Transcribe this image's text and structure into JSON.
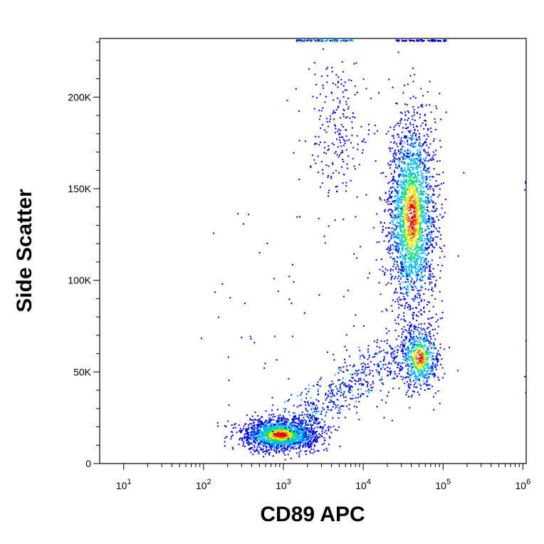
{
  "chart_data": {
    "type": "scatter",
    "subtype": "flow-cytometry density dot plot",
    "title": "",
    "xlabel": "CD89 APC",
    "ylabel": "Side Scatter",
    "x_scale": "log",
    "xlim": [
      5,
      1100000
    ],
    "ylim": [
      0,
      232000
    ],
    "x_ticks": [
      {
        "value": 10,
        "base": "10",
        "exp": "1"
      },
      {
        "value": 100,
        "base": "10",
        "exp": "2"
      },
      {
        "value": 1000,
        "base": "10",
        "exp": "3"
      },
      {
        "value": 10000,
        "base": "10",
        "exp": "4"
      },
      {
        "value": 100000,
        "base": "10",
        "exp": "5"
      },
      {
        "value": 1000000,
        "base": "10",
        "exp": "6"
      }
    ],
    "y_ticks": [
      {
        "value": 0,
        "label": "0"
      },
      {
        "value": 50000,
        "label": "50K"
      },
      {
        "value": 100000,
        "label": "100K"
      },
      {
        "value": 150000,
        "label": "150K"
      },
      {
        "value": 200000,
        "label": "200K"
      }
    ],
    "grid": false,
    "legend": "none",
    "color_scale": [
      "#0000d8",
      "#00b8ff",
      "#10e070",
      "#f0e800",
      "#ff8000",
      "#e80000"
    ],
    "populations": [
      {
        "x_center": 900,
        "y_center": 16000,
        "density": "high"
      },
      {
        "x_center": 40000,
        "y_center": 135000,
        "density": "high"
      },
      {
        "x_center": 50000,
        "y_center": 58000,
        "density": "medium"
      },
      {
        "x_center": 4500,
        "y_center": 180000,
        "density": "low"
      }
    ]
  }
}
